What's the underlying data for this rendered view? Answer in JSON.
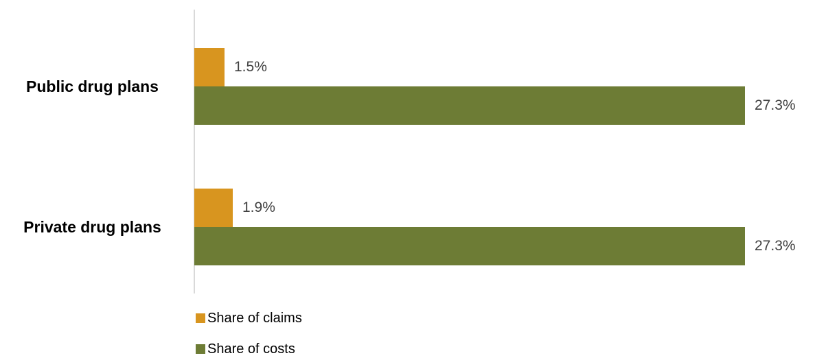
{
  "chart_data": {
    "type": "bar",
    "orientation": "horizontal",
    "title": "",
    "categories": [
      "Public drug plans",
      "Private drug plans"
    ],
    "series": [
      {
        "name": "Share of claims",
        "color": "#D8951F",
        "values": [
          1.5,
          1.9
        ]
      },
      {
        "name": "Share of costs",
        "color": "#6D7C35",
        "values": [
          27.3,
          27.3
        ]
      }
    ],
    "value_labels": [
      [
        "1.5%",
        "27.3%"
      ],
      [
        "1.9%",
        "27.3%"
      ]
    ],
    "xlim": [
      0,
      27.3
    ],
    "grid": false,
    "legend_position": "bottom-left",
    "axis_line_color": "#d9d9d9"
  }
}
